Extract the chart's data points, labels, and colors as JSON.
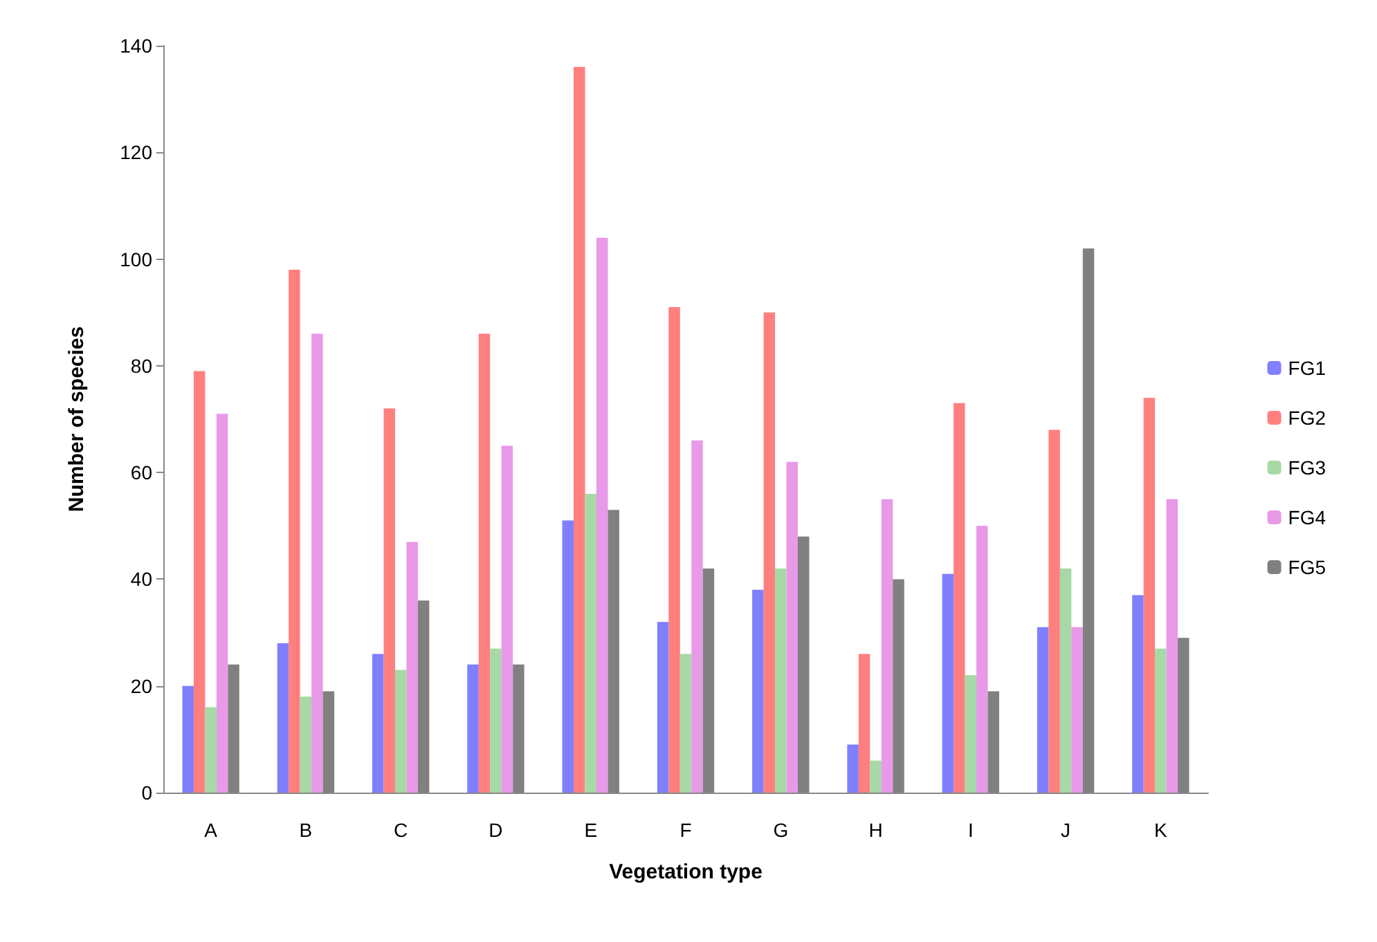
{
  "chart_data": {
    "type": "bar",
    "xlabel": "Vegetation type",
    "ylabel": "Number of species",
    "categories": [
      "A",
      "B",
      "C",
      "D",
      "E",
      "F",
      "G",
      "H",
      "I",
      "J",
      "K"
    ],
    "series": [
      {
        "name": "FG1",
        "color": "#7f7fff",
        "values": [
          20,
          28,
          26,
          24,
          51,
          32,
          38,
          9,
          41,
          31,
          37
        ]
      },
      {
        "name": "FG2",
        "color": "#ff7f7f",
        "values": [
          79,
          98,
          72,
          86,
          136,
          91,
          90,
          26,
          73,
          68,
          74
        ]
      },
      {
        "name": "FG3",
        "color": "#a6d9a6",
        "values": [
          16,
          18,
          23,
          27,
          56,
          26,
          42,
          6,
          22,
          42,
          27
        ]
      },
      {
        "name": "FG4",
        "color": "#e899e8",
        "values": [
          71,
          86,
          47,
          65,
          104,
          66,
          62,
          55,
          50,
          31,
          55
        ]
      },
      {
        "name": "FG5",
        "color": "#808080",
        "values": [
          24,
          19,
          36,
          24,
          53,
          42,
          48,
          40,
          19,
          102,
          29
        ]
      }
    ],
    "ylim": [
      0,
      140
    ],
    "yticks": [
      0,
      20,
      40,
      60,
      80,
      100,
      120,
      140
    ],
    "grid": false,
    "legend": "right"
  }
}
